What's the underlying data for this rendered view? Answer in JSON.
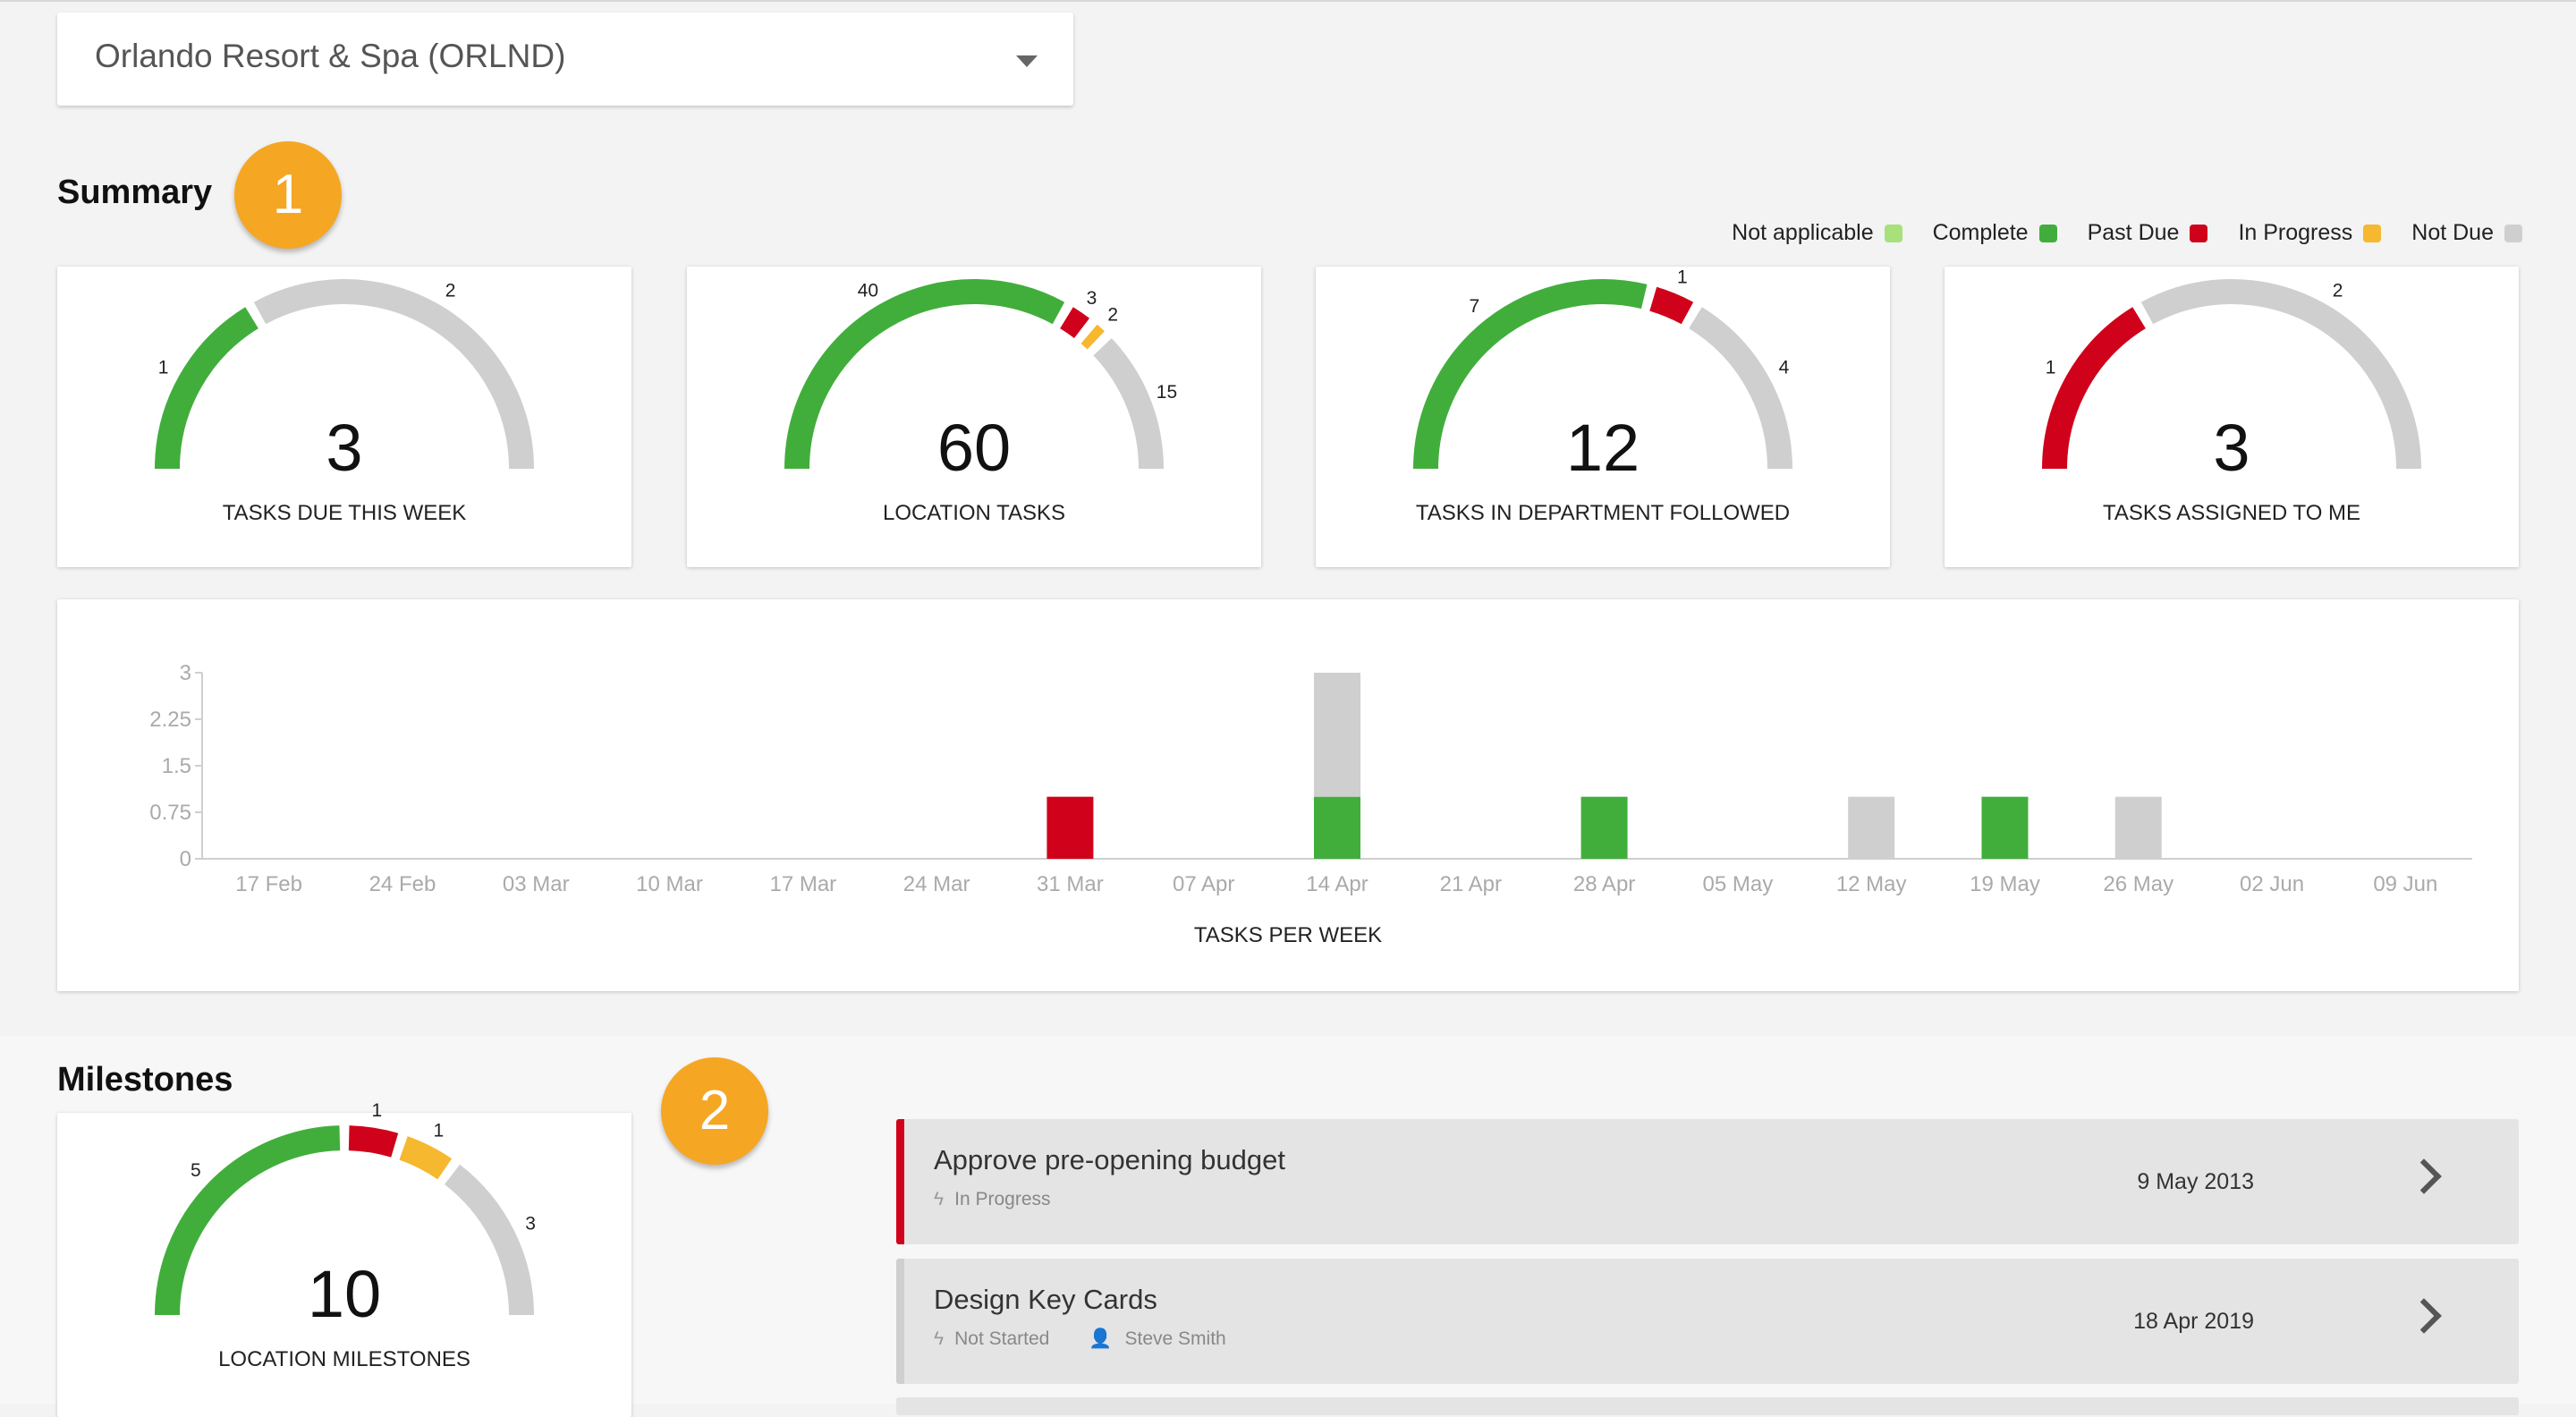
{
  "location": {
    "selected": "Orlando Resort & Spa (ORLND)"
  },
  "summary": {
    "title": "Summary",
    "badge": "1",
    "legend": [
      {
        "label": "Not applicable",
        "color": "#a8e07a"
      },
      {
        "label": "Complete",
        "color": "#41ae3c"
      },
      {
        "label": "Past Due",
        "color": "#d0021b"
      },
      {
        "label": "In Progress",
        "color": "#f5b82e"
      },
      {
        "label": "Not Due",
        "color": "#cfcfcf"
      }
    ],
    "gauges": [
      {
        "value": "3",
        "label": "TASKS DUE THIS WEEK",
        "segments": [
          {
            "status": "complete",
            "value": 1,
            "label": "1"
          },
          {
            "status": "not_due",
            "value": 2,
            "label": "2"
          }
        ]
      },
      {
        "value": "60",
        "label": "LOCATION TASKS",
        "segments": [
          {
            "status": "complete",
            "value": 40,
            "label": "40"
          },
          {
            "status": "past_due",
            "value": 3,
            "label": "3"
          },
          {
            "status": "in_progress",
            "value": 2,
            "label": "2"
          },
          {
            "status": "not_due",
            "value": 15,
            "label": "15"
          }
        ]
      },
      {
        "value": "12",
        "label": "TASKS IN DEPARTMENT FOLLOWED",
        "segments": [
          {
            "status": "complete",
            "value": 7,
            "label": "7"
          },
          {
            "status": "past_due",
            "value": 1,
            "label": "1"
          },
          {
            "status": "not_due",
            "value": 4,
            "label": "4"
          }
        ]
      },
      {
        "value": "3",
        "label": "TASKS ASSIGNED TO ME",
        "segments": [
          {
            "status": "past_due",
            "value": 1,
            "label": "1"
          },
          {
            "status": "not_due",
            "value": 2,
            "label": "2"
          }
        ]
      }
    ]
  },
  "status_colors": {
    "complete": "#41ae3c",
    "past_due": "#d0021b",
    "in_progress": "#f5b82e",
    "not_due": "#cfcfcf",
    "not_applicable": "#a8e07a"
  },
  "chart_data": {
    "type": "bar",
    "title": "TASKS PER WEEK",
    "stacked": true,
    "categories": [
      "17 Feb",
      "24 Feb",
      "03 Mar",
      "10 Mar",
      "17 Mar",
      "24 Mar",
      "31 Mar",
      "07 Apr",
      "14 Apr",
      "21 Apr",
      "28 Apr",
      "05 May",
      "12 May",
      "19 May",
      "26 May",
      "02 Jun",
      "09 Jun"
    ],
    "series": [
      {
        "status": "complete",
        "values": [
          0,
          0,
          0,
          0,
          0,
          0,
          0,
          0,
          1,
          0,
          1,
          0,
          0,
          1,
          0,
          0,
          0
        ]
      },
      {
        "status": "past_due",
        "values": [
          0,
          0,
          0,
          0,
          0,
          0,
          1,
          0,
          0,
          0,
          0,
          0,
          0,
          0,
          0,
          0,
          0
        ]
      },
      {
        "status": "in_progress",
        "values": [
          0,
          0,
          0,
          0,
          0,
          0,
          0,
          0,
          0,
          0,
          0,
          0,
          0,
          0,
          0,
          0,
          0
        ]
      },
      {
        "status": "not_due",
        "values": [
          0,
          0,
          0,
          0,
          0,
          0,
          0,
          0,
          2,
          0,
          0,
          0,
          1,
          0,
          1,
          0,
          0
        ]
      }
    ],
    "yticks": [
      "0",
      "0.75",
      "1.5",
      "2.25",
      "3"
    ],
    "ylim": [
      0,
      3
    ]
  },
  "milestones": {
    "title": "Milestones",
    "badge": "2",
    "gauge": {
      "value": "10",
      "label": "LOCATION MILESTONES",
      "segments": [
        {
          "status": "complete",
          "value": 5,
          "label": "5"
        },
        {
          "status": "past_due",
          "value": 1,
          "label": "1"
        },
        {
          "status": "in_progress",
          "value": 1,
          "label": "1"
        },
        {
          "status": "not_due",
          "value": 3,
          "label": "3"
        }
      ]
    },
    "items": [
      {
        "title": "Approve pre-opening budget",
        "status": "In Progress",
        "assignee": "",
        "date": "9 May 2013",
        "accent": "#d0021b"
      },
      {
        "title": "Design Key Cards",
        "status": "Not Started",
        "assignee": "Steve Smith",
        "date": "18 Apr 2019",
        "accent": "#cfcfcf"
      }
    ]
  }
}
